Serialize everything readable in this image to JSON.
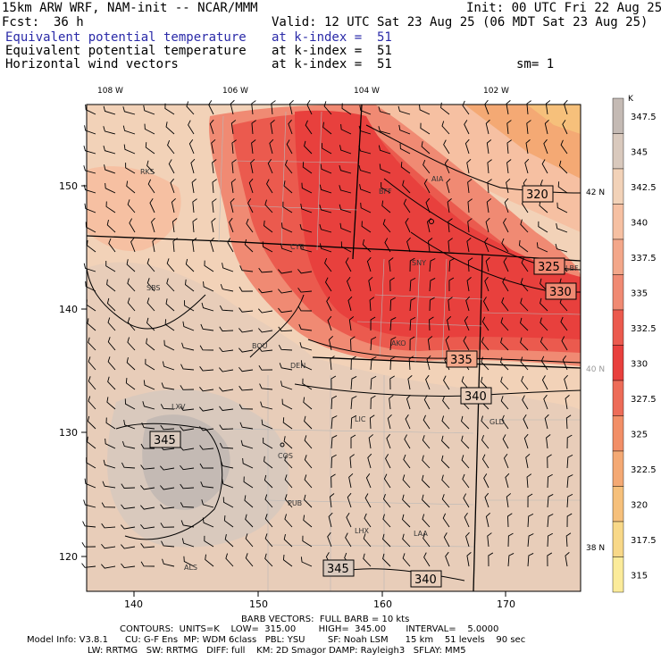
{
  "header": {
    "model_title": "15km ARW WRF, NAM-init -- NCAR/MMM",
    "init": "Init: 00 UTC Fri 22 Aug 25",
    "fcst_label": "Fcst:",
    "fcst_value": "36 h",
    "valid": "Valid: 12 UTC Sat 23 Aug 25 (06 MDT Sat 23 Aug 25)",
    "fields": [
      {
        "name": "Equivalent potential temperature",
        "level": "at k-index =  51",
        "color": "#2a2aa8"
      },
      {
        "name": "Equivalent potential temperature",
        "level": "at k-index =  51",
        "color": "#000000"
      },
      {
        "name": "Horizontal wind vectors",
        "level": "at k-index =  51",
        "color": "#000000"
      }
    ],
    "smoothing": "sm= 1"
  },
  "map": {
    "lon_labels": [
      "108 W",
      "106 W",
      "104 W",
      "102 W"
    ],
    "lat_labels": [
      "42 N",
      "40 N",
      "38 N"
    ],
    "x_ticks": [
      "140",
      "150",
      "160",
      "170"
    ],
    "y_ticks": [
      "150",
      "140",
      "130",
      "120"
    ],
    "stations": [
      "RKS",
      "BFF",
      "AIA",
      "CYS",
      "SNY",
      "SBS",
      "LBF",
      "BOU",
      "AKO",
      "DEN",
      "LXV",
      "LIC",
      "GLD",
      "COS",
      "PUB",
      "LHX",
      "LAA",
      "ALS"
    ],
    "contour_labels": [
      "320",
      "325",
      "330",
      "335",
      "340",
      "345",
      "345",
      "340"
    ]
  },
  "colorbar": {
    "unit": "K",
    "levels": [
      "347.5",
      "345",
      "342.5",
      "340",
      "337.5",
      "335",
      "332.5",
      "330",
      "327.5",
      "325",
      "322.5",
      "320",
      "317.5",
      "315"
    ],
    "colors": [
      "#c4bab4",
      "#d9c9bd",
      "#f2d2b8",
      "#f6c0a2",
      "#f3a78a",
      "#f08a73",
      "#eb5a4e",
      "#e8403d",
      "#ed6c58",
      "#f28f67",
      "#f4a974",
      "#f6c07b",
      "#f8d888",
      "#fbeb9a"
    ]
  },
  "footer": {
    "line1": "BARB VECTORS:  FULL BARB = 10 kts",
    "line2": "CONTOURS:  UNITS=K    LOW=  315.00        HIGH=  345.00       INTERVAL=    5.0000",
    "line3": "Model Info: V3.8.1      CU: G-F Ens  MP: WDM 6class   PBL: YSU        SF: Noah LSM      15 km    51 levels    90 sec",
    "line4": "LW: RRTMG   SW: RRTMG   DIFF: full    KM: 2D Smagor DAMP: Rayleigh3   SFLAY: MM5"
  }
}
